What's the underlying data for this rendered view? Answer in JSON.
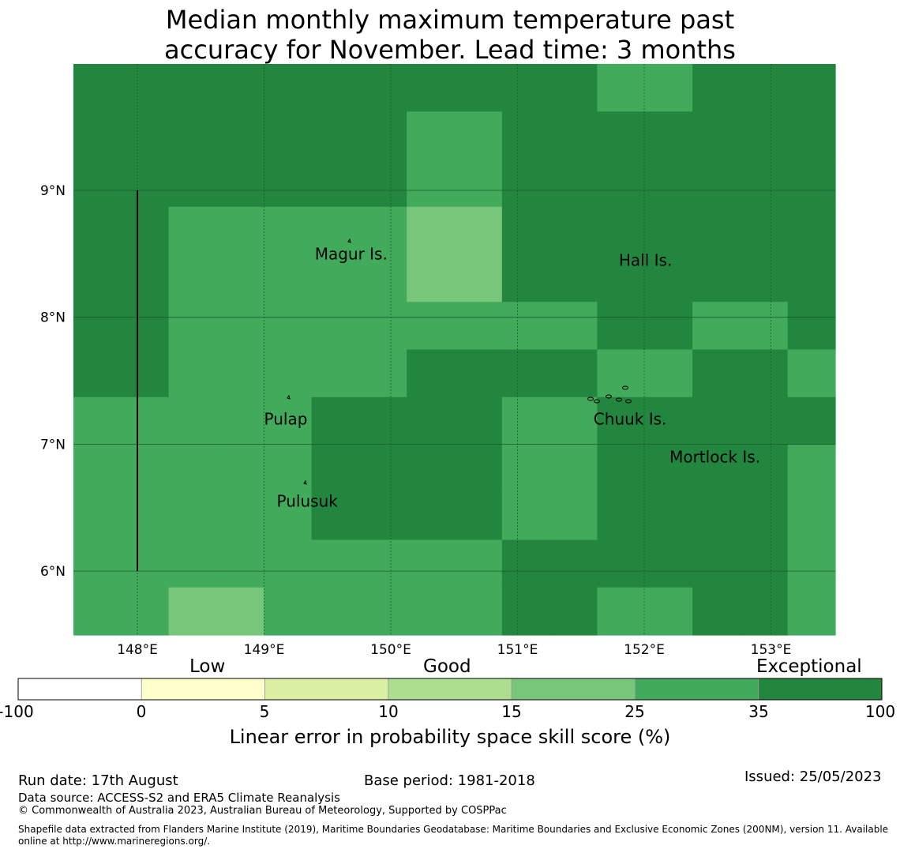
{
  "title_line1": "Median monthly maximum temperature past",
  "title_line2": "accuracy for November. Lead time: 3 months",
  "map": {
    "lon_labels": [
      "148°E",
      "149°E",
      "150°E",
      "151°E",
      "152°E",
      "153°E"
    ],
    "lat_labels": [
      "9°N",
      "8°N",
      "7°N",
      "6°N"
    ],
    "places": [
      {
        "name": "Magur Is.",
        "lon": 149.4,
        "lat": 8.5
      },
      {
        "name": "Hall Is.",
        "lon": 151.8,
        "lat": 8.45
      },
      {
        "name": "Pulap",
        "lon": 149.0,
        "lat": 7.2
      },
      {
        "name": "Chuuk Is.",
        "lon": 151.6,
        "lat": 7.2
      },
      {
        "name": "Mortlock Is.",
        "lon": 152.2,
        "lat": 6.9
      },
      {
        "name": "Pulusuk",
        "lon": 149.1,
        "lat": 6.55
      }
    ],
    "colors": {
      "exceptional": "#23863f",
      "good_high": "#41ab5b",
      "good_mid": "#78c679",
      "good_low": "#addd8e"
    },
    "grid_levels": [
      [
        4,
        4,
        4,
        4,
        4,
        4,
        4,
        4,
        4,
        4,
        4,
        3,
        3,
        4,
        4,
        4
      ],
      [
        4,
        4,
        4,
        4,
        4,
        4,
        4,
        3,
        3,
        4,
        4,
        4,
        4,
        4,
        4,
        4
      ],
      [
        4,
        4,
        4,
        4,
        4,
        4,
        4,
        3,
        3,
        4,
        4,
        4,
        4,
        4,
        4,
        4
      ],
      [
        4,
        4,
        3,
        3,
        3,
        3,
        3,
        2,
        2,
        4,
        4,
        4,
        4,
        4,
        4,
        4
      ],
      [
        4,
        4,
        3,
        3,
        3,
        3,
        3,
        2,
        2,
        4,
        4,
        4,
        4,
        4,
        4,
        4
      ],
      [
        4,
        4,
        3,
        3,
        3,
        3,
        3,
        3,
        3,
        3,
        3,
        4,
        4,
        3,
        3,
        4
      ],
      [
        4,
        4,
        3,
        3,
        3,
        3,
        3,
        4,
        4,
        4,
        4,
        3,
        3,
        4,
        4,
        3
      ],
      [
        3,
        3,
        3,
        3,
        3,
        4,
        4,
        4,
        4,
        3,
        3,
        4,
        4,
        4,
        4,
        4
      ],
      [
        3,
        3,
        3,
        3,
        3,
        4,
        4,
        4,
        4,
        3,
        3,
        4,
        4,
        4,
        4,
        3
      ],
      [
        3,
        3,
        3,
        3,
        3,
        4,
        4,
        4,
        4,
        3,
        3,
        4,
        4,
        4,
        4,
        3
      ],
      [
        3,
        3,
        3,
        3,
        3,
        3,
        3,
        3,
        3,
        4,
        4,
        4,
        4,
        4,
        4,
        3
      ],
      [
        3,
        3,
        2,
        2,
        3,
        3,
        3,
        3,
        3,
        4,
        4,
        3,
        3,
        4,
        4,
        3
      ]
    ]
  },
  "legend": {
    "categories": [
      "Low",
      "Good",
      "Exceptional"
    ],
    "ticks": [
      "-100",
      "0",
      "5",
      "10",
      "15",
      "25",
      "35",
      "100"
    ],
    "colors": [
      "#ffffff",
      "#ffffcc",
      "#d9f0a3",
      "#addd8e",
      "#78c679",
      "#41ab5b",
      "#23863f"
    ],
    "title": "Linear error in probability space skill score (%)"
  },
  "footer": {
    "run_date": "Run date: 17th August",
    "base_period": "Base period: 1981-2018",
    "issued": "Issued: 25/05/2023",
    "data_source": "Data source: ACCESS-S2 and ERA5 Climate Reanalysis",
    "copyright": "© Commonwealth of Australia 2023, Australian Bureau of Meteorology, Supported by COSPPac",
    "shapefile_line1": "Shapefile data extracted from Flanders Marine Institute (2019), Maritime Boundaries Geodatabase: Maritime Boundaries and Exclusive Economic Zones (200NM), version 11. Available",
    "shapefile_line2": "online at http://www.marineregions.org/."
  }
}
